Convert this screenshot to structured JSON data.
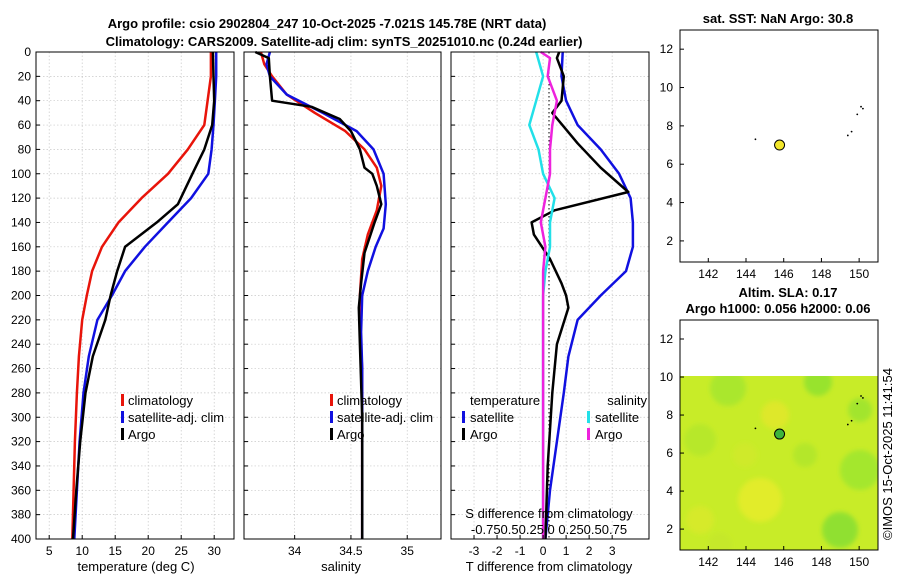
{
  "titles": {
    "line1": "Argo profile: csio 2902804_247 10-Oct-2025 -7.021S 145.78E (NRT data)",
    "line2": "Climatology: CARS2009. Satellite-adj clim: synTS_20251010.nc (0.24d earlier)",
    "map1": "sat. SST: NaN Argo: 30.8",
    "map2a": "Altim. SLA: 0.17",
    "map2b": "Argo h1000: 0.056 h2000: 0.06",
    "watermark": "©IMOS 15-Oct-2025 11:41:54"
  },
  "colors": {
    "climatology": "#e8140a",
    "satellite": "#1010e0",
    "argo": "#000000",
    "sat_salinity": "#22e0e8",
    "argo_salinity": "#ee22dd",
    "marker_map1": "#f2e62a",
    "marker_map2": "#3cb43c",
    "field_base": "#c8ec28"
  },
  "chart_data": [
    {
      "type": "line",
      "title": "",
      "xlabel": "temperature (deg C)",
      "ylabel": "",
      "xlim": [
        3,
        33
      ],
      "ylim": [
        0,
        400
      ],
      "y_reversed": true,
      "xticks": [
        5,
        10,
        15,
        20,
        25,
        30
      ],
      "yticks": [
        0,
        20,
        40,
        60,
        80,
        100,
        120,
        140,
        160,
        180,
        200,
        220,
        240,
        260,
        280,
        300,
        320,
        340,
        360,
        380,
        400
      ],
      "legend": [
        "climatology",
        "satellite-adj. clim",
        "Argo"
      ],
      "series": [
        {
          "name": "climatology",
          "color_key": "climatology",
          "x": [
            29.5,
            29.5,
            29.0,
            28.5,
            26.0,
            23.0,
            19.0,
            15.5,
            13.0,
            11.5,
            10.7,
            10.0,
            9.5,
            9.2,
            8.9,
            8.7,
            8.5
          ],
          "y": [
            0,
            20,
            40,
            60,
            80,
            100,
            120,
            140,
            160,
            180,
            200,
            220,
            250,
            280,
            320,
            360,
            400
          ]
        },
        {
          "name": "satellite-adj. clim",
          "color_key": "satellite",
          "x": [
            30.3,
            30.3,
            30.1,
            29.9,
            29.6,
            29.1,
            26.5,
            23.0,
            19.5,
            16.5,
            14.5,
            12.3,
            11.0,
            10.2,
            9.6,
            9.2,
            8.8
          ],
          "y": [
            0,
            20,
            40,
            60,
            80,
            100,
            120,
            140,
            160,
            180,
            200,
            220,
            250,
            280,
            320,
            360,
            400
          ]
        },
        {
          "name": "Argo",
          "color_key": "argo",
          "x": [
            29.8,
            29.9,
            30.0,
            29.7,
            28.5,
            26.7,
            24.5,
            21.3,
            16.5,
            15.3,
            14.3,
            13.5,
            11.6,
            10.5,
            9.7,
            9.1,
            8.6
          ],
          "y": [
            0,
            20,
            40,
            60,
            80,
            100,
            125,
            140,
            160,
            180,
            200,
            220,
            250,
            280,
            320,
            360,
            400
          ]
        }
      ]
    },
    {
      "type": "line",
      "xlabel": "salinity",
      "xlim": [
        33.55,
        35.3
      ],
      "ylim": [
        0,
        400
      ],
      "y_reversed": true,
      "xticks": [
        34,
        34.5,
        35
      ],
      "legend": [
        "climatology",
        "satellite-adj. clim",
        "Argo"
      ],
      "series": [
        {
          "name": "climatology",
          "color_key": "climatology",
          "x": [
            33.7,
            33.73,
            33.8,
            33.93,
            34.18,
            34.45,
            34.62,
            34.73,
            34.77,
            34.73,
            34.65,
            34.6,
            34.58,
            34.58,
            34.6,
            34.6,
            34.6,
            34.6
          ],
          "y": [
            0,
            10,
            20,
            35,
            50,
            65,
            80,
            95,
            110,
            130,
            150,
            170,
            200,
            230,
            260,
            300,
            350,
            400
          ]
        },
        {
          "name": "satellite-adj. clim",
          "color_key": "satellite",
          "x": [
            33.78,
            33.75,
            33.78,
            33.93,
            34.25,
            34.55,
            34.7,
            34.79,
            34.81,
            34.79,
            34.72,
            34.65,
            34.6,
            34.59,
            34.6,
            34.6,
            34.6,
            34.6
          ],
          "y": [
            0,
            10,
            20,
            35,
            50,
            65,
            80,
            100,
            125,
            145,
            160,
            180,
            200,
            230,
            260,
            300,
            350,
            400
          ]
        },
        {
          "name": "Argo",
          "color_key": "argo",
          "x": [
            33.65,
            33.77,
            33.78,
            33.8,
            34.15,
            34.4,
            34.5,
            34.58,
            34.62,
            34.69,
            34.73,
            34.77,
            34.71,
            34.62,
            34.59,
            34.57,
            34.58,
            34.6,
            34.6,
            34.6
          ],
          "y": [
            0,
            5,
            20,
            40,
            45,
            55,
            65,
            80,
            95,
            100,
            110,
            125,
            140,
            165,
            190,
            210,
            240,
            300,
            350,
            400
          ]
        }
      ]
    },
    {
      "type": "line",
      "xlabel": "T difference from climatology",
      "title": "S difference from climatology",
      "xlim": [
        -4.0,
        4.6
      ],
      "ylim": [
        0,
        400
      ],
      "y_reversed": true,
      "xticks": [
        -3,
        -2,
        -1,
        0,
        1,
        2,
        3
      ],
      "s_axis_ticks_label": "-0.750.50.25 0 0.250.50.75",
      "s_scale": 4,
      "legend_groups": {
        "temperature": [
          "satellite",
          "Argo"
        ],
        "salinity": [
          "satellite",
          "Argo"
        ]
      },
      "series": [
        {
          "name": "temperature satellite",
          "color_key": "satellite",
          "x": [
            0.85,
            0.8,
            1.0,
            1.5,
            2.5,
            3.3,
            3.8,
            3.9,
            3.9,
            3.6,
            2.5,
            1.5,
            1.1,
            0.9,
            0.6,
            0.3,
            0.1
          ],
          "y": [
            0,
            20,
            40,
            60,
            80,
            100,
            120,
            140,
            160,
            180,
            200,
            220,
            250,
            280,
            320,
            360,
            400
          ]
        },
        {
          "name": "temperature Argo",
          "color_key": "argo",
          "x": [
            0.7,
            0.6,
            0.9,
            0.8,
            0.4,
            1.5,
            2.5,
            3.7,
            0.5,
            -0.5,
            -0.4,
            0.3,
            0.8,
            1.0,
            1.1,
            0.6,
            0.4,
            0.2,
            0.1
          ],
          "y": [
            0,
            5,
            20,
            40,
            50,
            75,
            95,
            115,
            130,
            140,
            150,
            170,
            190,
            200,
            210,
            240,
            280,
            340,
            400
          ]
        },
        {
          "name": "salinity satellite",
          "color_key": "sat_salinity",
          "x": [
            -0.3,
            0.0,
            -0.3,
            -0.6,
            -0.2,
            0.0,
            0.5,
            0.3,
            0.3,
            0.1,
            0.0,
            0.0,
            0.0,
            0.0
          ],
          "y": [
            0,
            20,
            40,
            60,
            80,
            100,
            120,
            140,
            160,
            180,
            200,
            260,
            320,
            400
          ]
        },
        {
          "name": "salinity Argo",
          "color_key": "argo_salinity",
          "x": [
            -0.1,
            0.3,
            0.2,
            0.6,
            0.4,
            0.3,
            0.3,
            0.1,
            -0.1,
            0.1,
            0.0,
            0.0,
            0.0,
            0.0
          ],
          "y": [
            0,
            5,
            20,
            40,
            60,
            80,
            100,
            120,
            140,
            160,
            180,
            220,
            300,
            400
          ]
        }
      ]
    },
    {
      "type": "scatter",
      "title": "sat. SST: NaN Argo: 30.8",
      "xlim": [
        140.5,
        151.0
      ],
      "ylim": [
        0.9,
        13.0
      ],
      "xticks": [
        142,
        144,
        146,
        148,
        150
      ],
      "yticks": [
        2,
        4,
        6,
        8,
        10,
        12
      ],
      "points": {
        "x": [
          144.5,
          149.4,
          149.6,
          149.9,
          150.1,
          150.2
        ],
        "y": [
          7.3,
          7.5,
          7.7,
          8.6,
          9.0,
          8.9
        ]
      },
      "argo_position": {
        "x": 145.78,
        "y": 7.0
      }
    },
    {
      "type": "heatmap",
      "title": "Altim. SLA: 0.17 / Argo h1000: 0.056 h2000: 0.06",
      "xlim": [
        140.5,
        151.0
      ],
      "ylim": [
        0.9,
        13.0
      ],
      "field_top": 10.2,
      "xticks": [
        142,
        144,
        146,
        148,
        150
      ],
      "yticks": [
        2,
        4,
        6,
        8,
        10,
        12
      ],
      "points": {
        "x": [
          144.5,
          149.4,
          149.6,
          149.9,
          150.1,
          150.2
        ],
        "y": [
          7.3,
          7.5,
          7.7,
          8.6,
          9.0,
          8.9
        ]
      },
      "argo_position": {
        "x": 145.78,
        "y": 7.0
      }
    }
  ]
}
